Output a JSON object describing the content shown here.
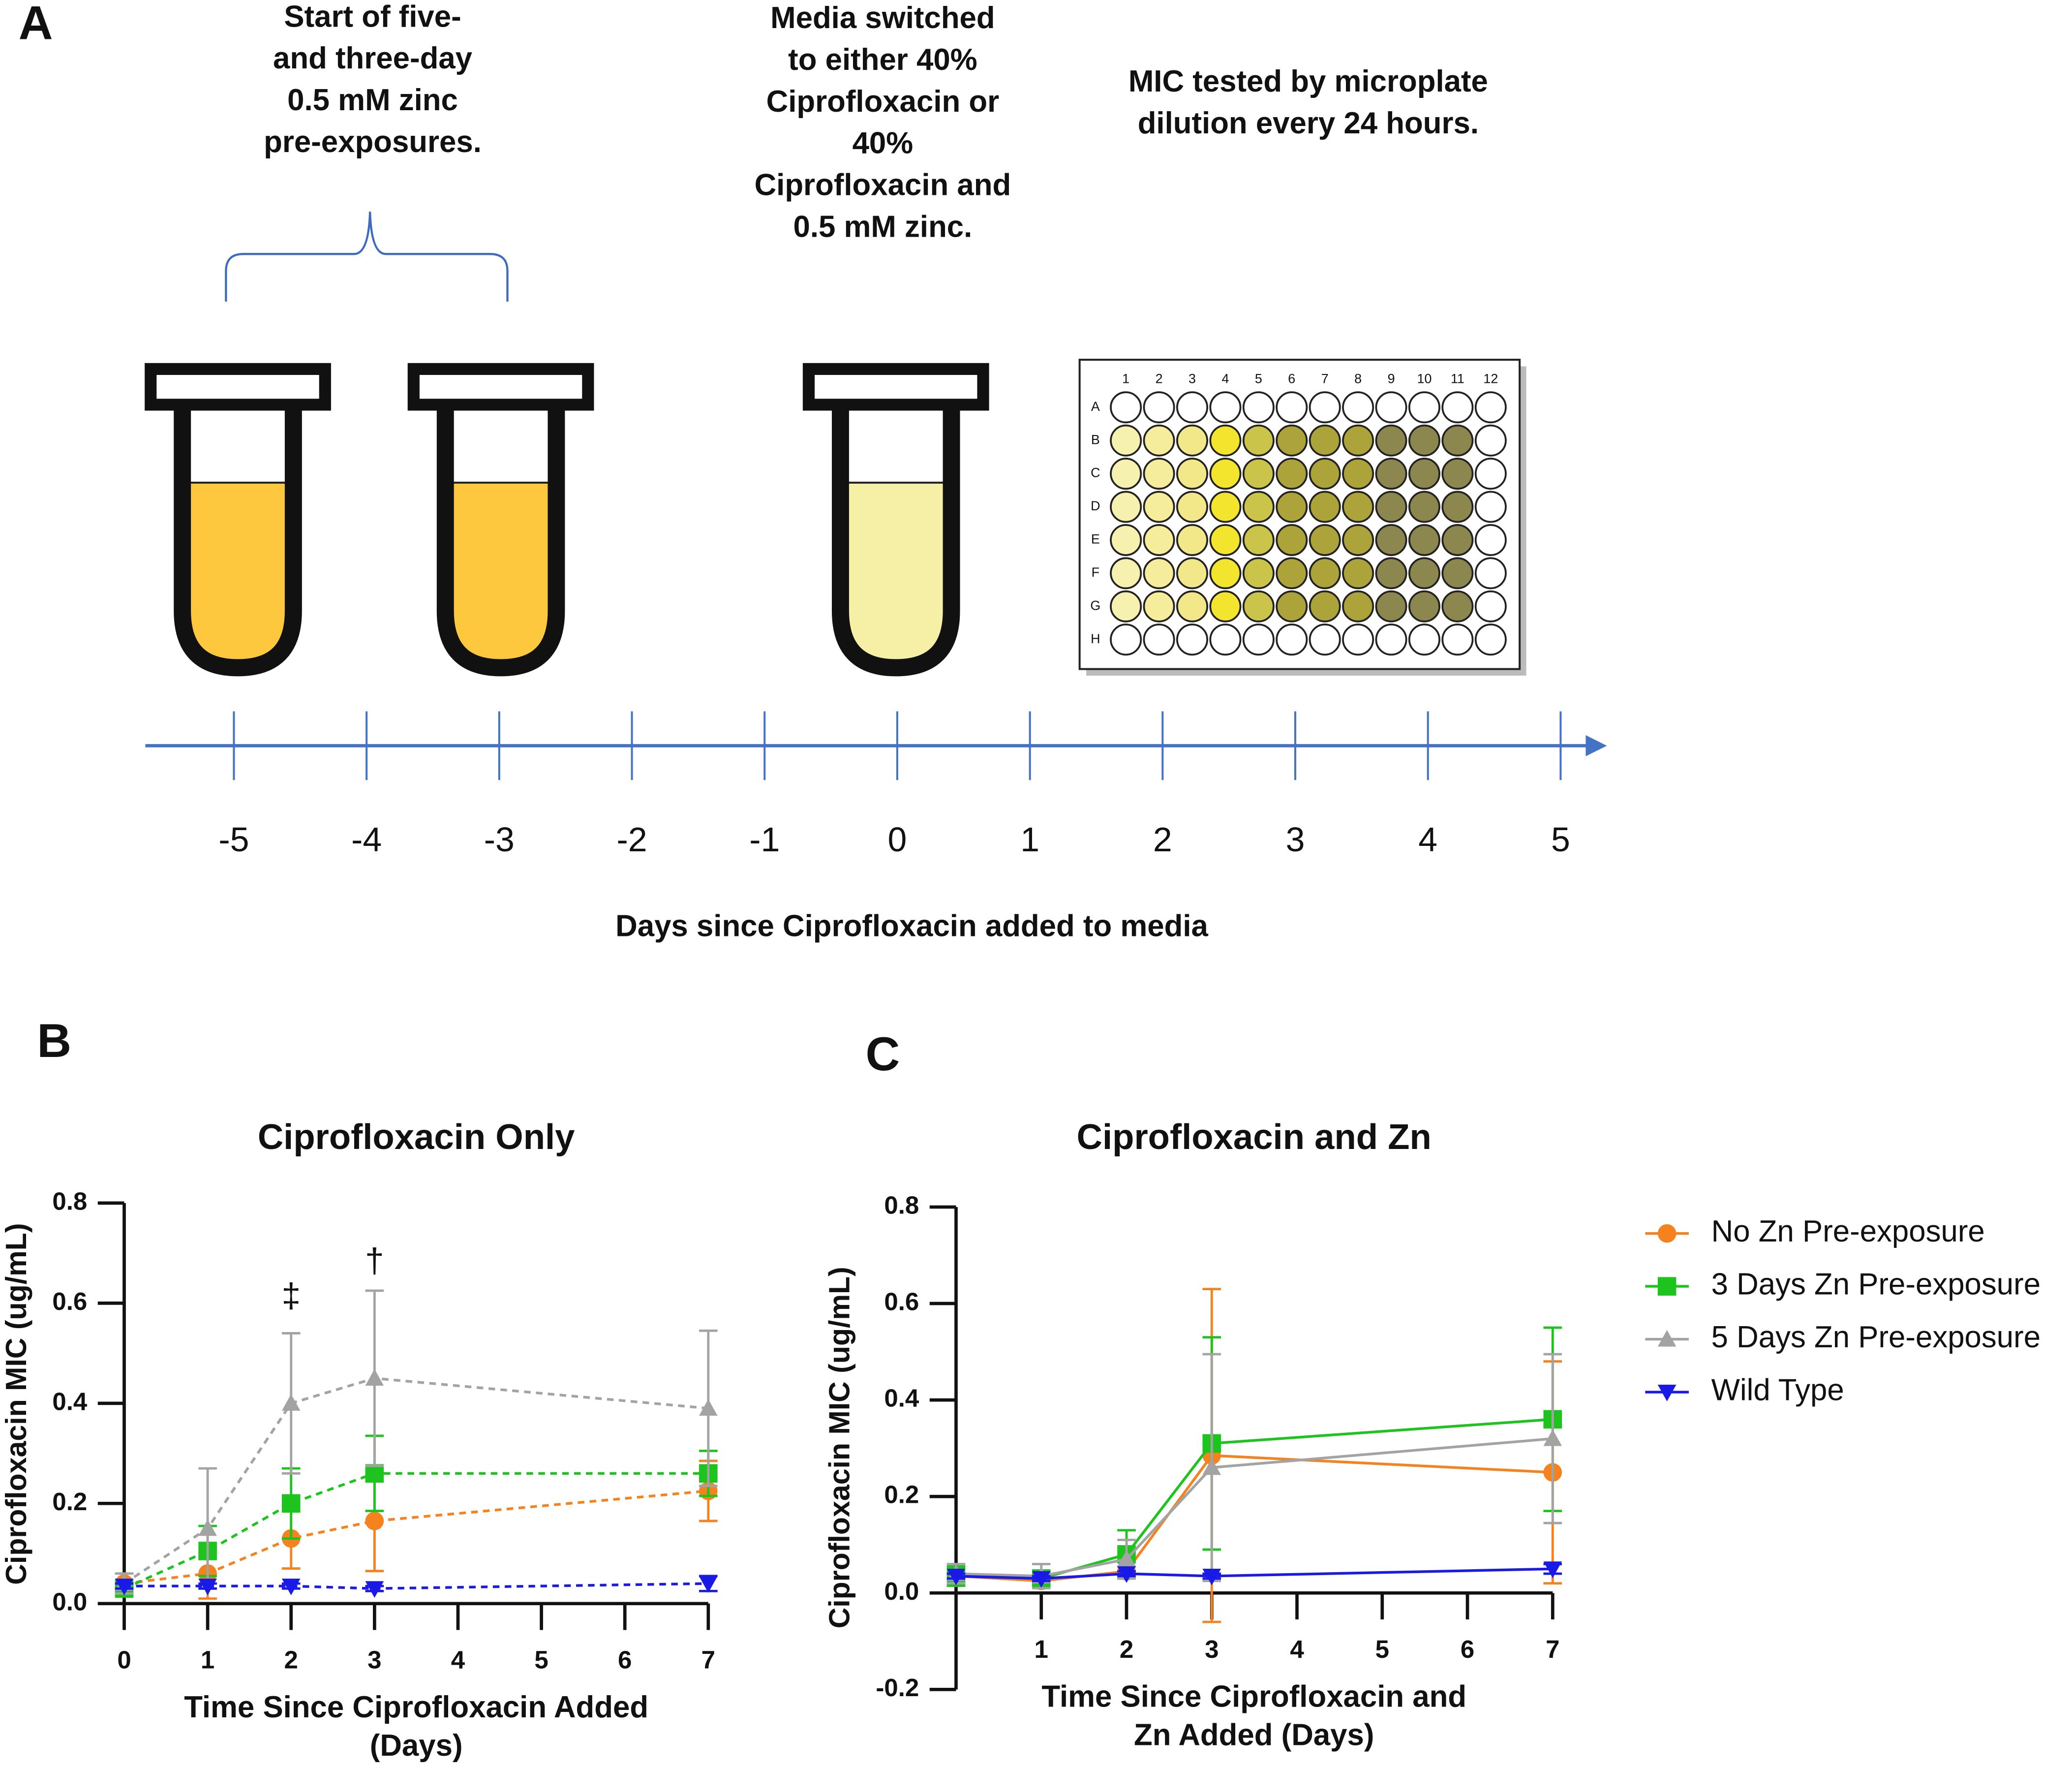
{
  "diagram": {
    "panel_label": "A",
    "annotations": [
      [
        "Start of five-",
        "and three-day",
        "0.5 mM zinc",
        "pre-exposures."
      ],
      [
        "Media switched",
        "to either 40%",
        "Ciprofloxacin or",
        "40%",
        "Ciprofloxacin and",
        "0.5 mM zinc."
      ],
      [
        "MIC tested by microplate",
        "dilution every 24 hours."
      ]
    ],
    "plate_columns": [
      "1",
      "2",
      "3",
      "4",
      "5",
      "6",
      "7",
      "8",
      "9",
      "10",
      "11",
      "12"
    ],
    "plate_rows": [
      "A",
      "B",
      "C",
      "D",
      "E",
      "F",
      "G",
      "H"
    ],
    "timeline_ticks": [
      -5,
      -4,
      -3,
      -2,
      -1,
      0,
      1,
      2,
      3,
      4,
      5
    ],
    "axis_label": "Days since Ciprofloxacin added to media"
  },
  "chart_data": [
    {
      "type": "line",
      "panel_label": "B",
      "title": "Ciprofloxacin Only",
      "x_label": [
        "Time Since Ciprofloxacin Added",
        "(Days)"
      ],
      "y_label": "Ciprofloxacin MIC (ug/mL)",
      "x": [
        0,
        1,
        2,
        3,
        7
      ],
      "xlim": [
        0,
        7
      ],
      "xticks": [
        0,
        1,
        2,
        3,
        4,
        5,
        6,
        7
      ],
      "ylim": [
        0,
        0.8
      ],
      "yticks": [
        {
          "value": 0,
          "label": "0.0"
        },
        0.2,
        0.4,
        0.6,
        0.8
      ],
      "line_style": "dashed",
      "series": [
        {
          "name": "No Zn Pre-exposure",
          "color": "#f5821f",
          "marker": "circle",
          "values": [
            0.04,
            0.06,
            0.13,
            0.165,
            0.225
          ],
          "errors": [
            0.02,
            0.05,
            0.06,
            0.1,
            0.06
          ]
        },
        {
          "name": "3 Days Zn Pre-exposure",
          "color": "#1ec41e",
          "marker": "square",
          "values": [
            0.03,
            0.105,
            0.2,
            0.26,
            0.26
          ],
          "errors": [
            0.01,
            0.05,
            0.07,
            0.075,
            0.045
          ]
        },
        {
          "name": "5 Days Zn Pre-exposure",
          "color": "#a3a3a3",
          "marker": "triangle-up",
          "values": [
            0.04,
            0.15,
            0.4,
            0.45,
            0.39
          ],
          "errors": [
            0.02,
            0.12,
            0.14,
            0.175,
            0.155
          ]
        },
        {
          "name": "Wild Type",
          "color": "#1a1ae6",
          "marker": "triangle-down",
          "values": [
            0.035,
            0.035,
            0.035,
            0.03,
            0.04
          ],
          "errors": [
            0.005,
            0.005,
            0.005,
            0.005,
            0.015
          ]
        }
      ],
      "annotations": [
        {
          "text": "‡",
          "x": 2,
          "y": 0.61
        },
        {
          "text": "†",
          "x": 3,
          "y": 0.68
        }
      ]
    },
    {
      "type": "line",
      "panel_label": "C",
      "title": "Ciprofloxacin and Zn",
      "x_label": [
        "Time Since Ciprofloxacin and",
        "Zn Added (Days)"
      ],
      "y_label": "Ciprofloxacin MIC (ug/mL)",
      "x": [
        0,
        1,
        2,
        3,
        7
      ],
      "xlim": [
        0,
        7
      ],
      "xticks": [
        1,
        2,
        3,
        4,
        5,
        6,
        7
      ],
      "ylim": [
        -0.2,
        0.8
      ],
      "yticks": [
        -0.2,
        {
          "value": 0,
          "label": "0.0"
        },
        0.2,
        0.4,
        0.6,
        0.8
      ],
      "line_style": "solid",
      "legend": "right",
      "series": [
        {
          "name": "No Zn Pre-exposure",
          "color": "#f5821f",
          "marker": "circle",
          "values": [
            0.035,
            0.025,
            0.045,
            0.285,
            0.25
          ],
          "errors": [
            0.02,
            0.005,
            0.01,
            0.345,
            0.23
          ]
        },
        {
          "name": "3 Days Zn Pre-exposure",
          "color": "#1ec41e",
          "marker": "square",
          "values": [
            0.035,
            0.03,
            0.08,
            0.31,
            0.36
          ],
          "errors": [
            0.02,
            0.005,
            0.05,
            0.22,
            0.19
          ]
        },
        {
          "name": "5 Days Zn Pre-exposure",
          "color": "#a3a3a3",
          "marker": "triangle-up",
          "values": [
            0.04,
            0.035,
            0.07,
            0.26,
            0.32
          ],
          "errors": [
            0.02,
            0.025,
            0.04,
            0.235,
            0.175
          ]
        },
        {
          "name": "Wild Type",
          "color": "#1a1ae6",
          "marker": "triangle-down",
          "values": [
            0.035,
            0.03,
            0.04,
            0.035,
            0.05
          ],
          "errors": [
            0.005,
            0.005,
            0.005,
            0.005,
            0.01
          ]
        }
      ]
    }
  ]
}
